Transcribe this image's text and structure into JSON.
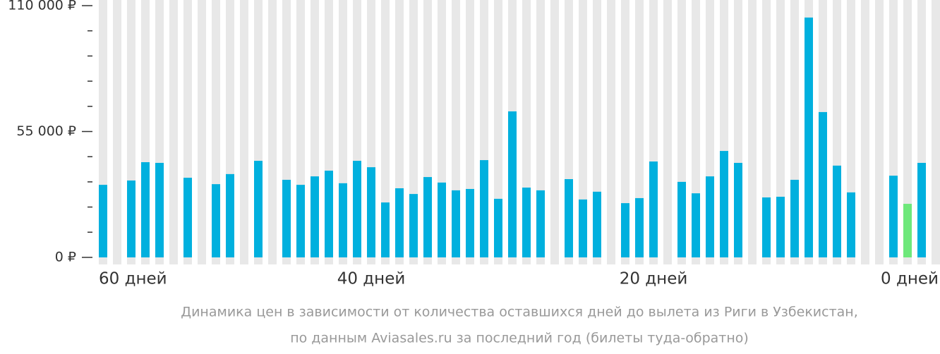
{
  "chart_data": {
    "type": "bar",
    "caption": [
      "Динамика цен в зависимости от количества оставшихся дней до вылета из Риги в Узбекистан,",
      "по данным Aviasales.ru за последний год (билеты туда-обратно)"
    ],
    "categories": [
      "60 дней",
      null,
      null,
      null,
      null,
      null,
      null,
      null,
      null,
      null,
      null,
      null,
      null,
      null,
      null,
      null,
      null,
      null,
      null,
      "40 дней",
      null,
      null,
      null,
      null,
      null,
      null,
      null,
      null,
      null,
      null,
      null,
      null,
      null,
      null,
      null,
      null,
      null,
      null,
      null,
      "20 дней",
      null,
      null,
      null,
      null,
      null,
      null,
      null,
      null,
      null,
      null,
      null,
      null,
      null,
      null,
      null,
      null,
      null,
      null,
      null,
      "0 дней"
    ],
    "values": [
      31700,
      null,
      33600,
      41600,
      41300,
      null,
      34800,
      null,
      32000,
      36400,
      null,
      42200,
      null,
      33900,
      31700,
      35400,
      37900,
      32400,
      42200,
      39400,
      24000,
      30200,
      27700,
      35100,
      32700,
      29300,
      29900,
      42500,
      25600,
      63800,
      30500,
      29300,
      null,
      34200,
      25300,
      28700,
      null,
      23700,
      25900,
      41900,
      null,
      33000,
      28000,
      35400,
      46500,
      41300,
      null,
      26200,
      26500,
      33900,
      104800,
      63500,
      40100,
      28400,
      null,
      null,
      35700,
      23400,
      41300,
      null
    ],
    "color": "#00b0de",
    "highlight": {
      "index": 57,
      "color": "#6ee87a"
    },
    "stripe_color": "#e8e8e8",
    "ylim": [
      0,
      110000
    ],
    "yticks": [
      {
        "value": 0,
        "label": "0 ₽"
      },
      {
        "value": 55000,
        "label": "55 000 ₽"
      },
      {
        "value": 110000,
        "label": "110 000 ₽"
      }
    ],
    "yminor_ticks": [
      11000,
      22000,
      33000,
      44000,
      66000,
      77000,
      88000,
      99000
    ]
  }
}
